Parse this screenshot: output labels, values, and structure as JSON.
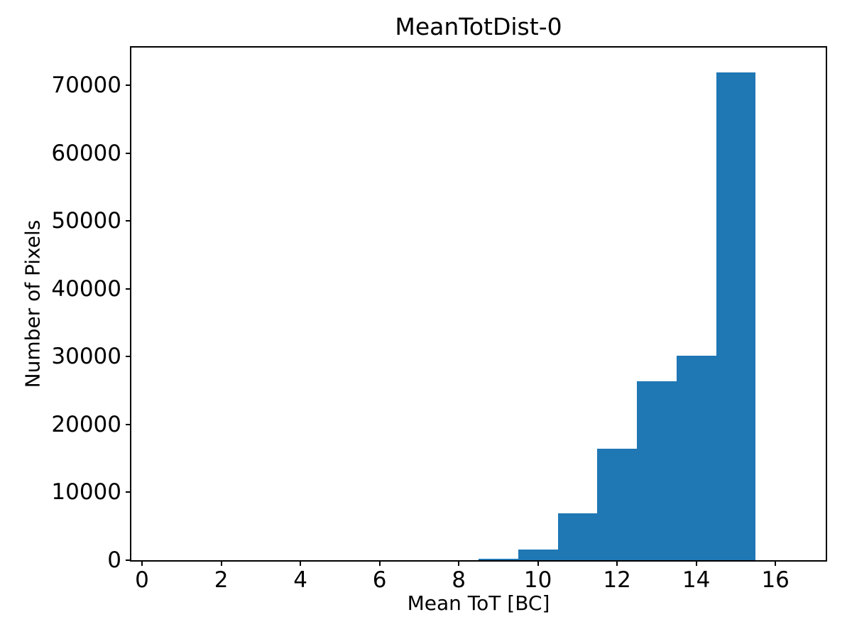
{
  "chart_data": {
    "type": "bar",
    "variant": "histogram",
    "title": "MeanTotDist-0",
    "xlabel": "Mean ToT [BC]",
    "ylabel": "Number of Pixels",
    "bar_color": "#1f77b4",
    "axis_color": "#000000",
    "background_color": "#ffffff",
    "grid": false,
    "legend": false,
    "bin_edges": [
      8.5,
      9.5,
      10.5,
      11.5,
      12.5,
      13.5,
      14.5,
      15.5
    ],
    "counts": [
      250,
      1600,
      6900,
      16400,
      26400,
      30200,
      71900
    ],
    "xlim": [
      -0.27,
      17.27
    ],
    "ylim": [
      0,
      75600
    ],
    "xticks": [
      0,
      2,
      4,
      6,
      8,
      10,
      12,
      14,
      16
    ],
    "xtick_labels": [
      "0",
      "2",
      "4",
      "6",
      "8",
      "10",
      "12",
      "14",
      "16"
    ],
    "yticks": [
      0,
      10000,
      20000,
      30000,
      40000,
      50000,
      60000,
      70000
    ],
    "ytick_labels": [
      "0",
      "10000",
      "20000",
      "30000",
      "40000",
      "50000",
      "60000",
      "70000"
    ]
  }
}
